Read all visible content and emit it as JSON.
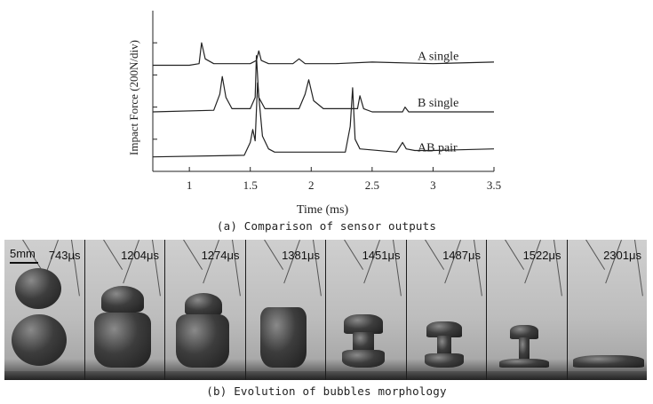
{
  "chart_data": {
    "type": "line",
    "xlabel": "Time (ms)",
    "ylabel": "Impact Force (200N/div)",
    "xlim": [
      0.7,
      3.5
    ],
    "xticks": [
      1,
      1.5,
      2,
      2.5,
      3,
      3.5
    ],
    "xtick_labels": [
      "1",
      "1.5",
      "2",
      "2.5",
      "3",
      "3.5"
    ],
    "grid": false,
    "series": [
      {
        "name": "A single",
        "baseline": 3.3,
        "x": [
          0.7,
          1.0,
          1.08,
          1.1,
          1.13,
          1.2,
          1.5,
          1.55,
          1.57,
          1.59,
          1.65,
          1.85,
          1.9,
          1.95,
          2.2,
          2.5,
          3.0,
          3.5
        ],
        "y": [
          3.3,
          3.3,
          3.35,
          4.0,
          3.5,
          3.35,
          3.35,
          3.45,
          3.75,
          3.45,
          3.35,
          3.35,
          3.5,
          3.35,
          3.35,
          3.4,
          3.35,
          3.4
        ]
      },
      {
        "name": "B single",
        "baseline": 1.85,
        "x": [
          0.7,
          1.2,
          1.25,
          1.27,
          1.3,
          1.35,
          1.5,
          1.54,
          1.55,
          1.57,
          1.62,
          1.9,
          1.95,
          1.98,
          2.02,
          2.1,
          2.38,
          2.4,
          2.43,
          2.5,
          2.75,
          2.77,
          2.8,
          3.5
        ],
        "y": [
          1.85,
          1.9,
          2.4,
          2.95,
          2.3,
          1.95,
          1.95,
          2.3,
          3.6,
          2.3,
          1.95,
          1.95,
          2.4,
          2.85,
          2.2,
          1.95,
          1.95,
          2.35,
          1.95,
          1.85,
          1.85,
          2.0,
          1.85,
          1.85
        ]
      },
      {
        "name": "AB pair",
        "baseline": 0.45,
        "x": [
          0.7,
          1.45,
          1.5,
          1.52,
          1.54,
          1.56,
          1.6,
          1.65,
          1.7,
          2.28,
          2.32,
          2.34,
          2.36,
          2.4,
          2.7,
          2.75,
          2.78,
          2.85,
          3.0,
          3.5
        ],
        "y": [
          0.45,
          0.5,
          0.9,
          1.3,
          0.95,
          2.75,
          1.1,
          0.7,
          0.6,
          0.6,
          1.4,
          2.6,
          1.0,
          0.7,
          0.6,
          0.9,
          0.7,
          0.65,
          0.65,
          0.7
        ]
      }
    ]
  },
  "captions": {
    "a": "(a) Comparison of sensor outputs",
    "b": "(b) Evolution of bubbles morphology"
  },
  "photo_strip": {
    "scale_label": "5mm",
    "frames": [
      {
        "time": "743μs",
        "stage": "two-spheres"
      },
      {
        "time": "1204μs",
        "stage": "mushroom"
      },
      {
        "time": "1274μs",
        "stage": "mushroom-small"
      },
      {
        "time": "1381μs",
        "stage": "column"
      },
      {
        "time": "1451μs",
        "stage": "hourglass"
      },
      {
        "time": "1487μs",
        "stage": "narrow-hourglass"
      },
      {
        "time": "1522μs",
        "stage": "jet"
      },
      {
        "time": "2301μs",
        "stage": "collapsed"
      }
    ]
  }
}
